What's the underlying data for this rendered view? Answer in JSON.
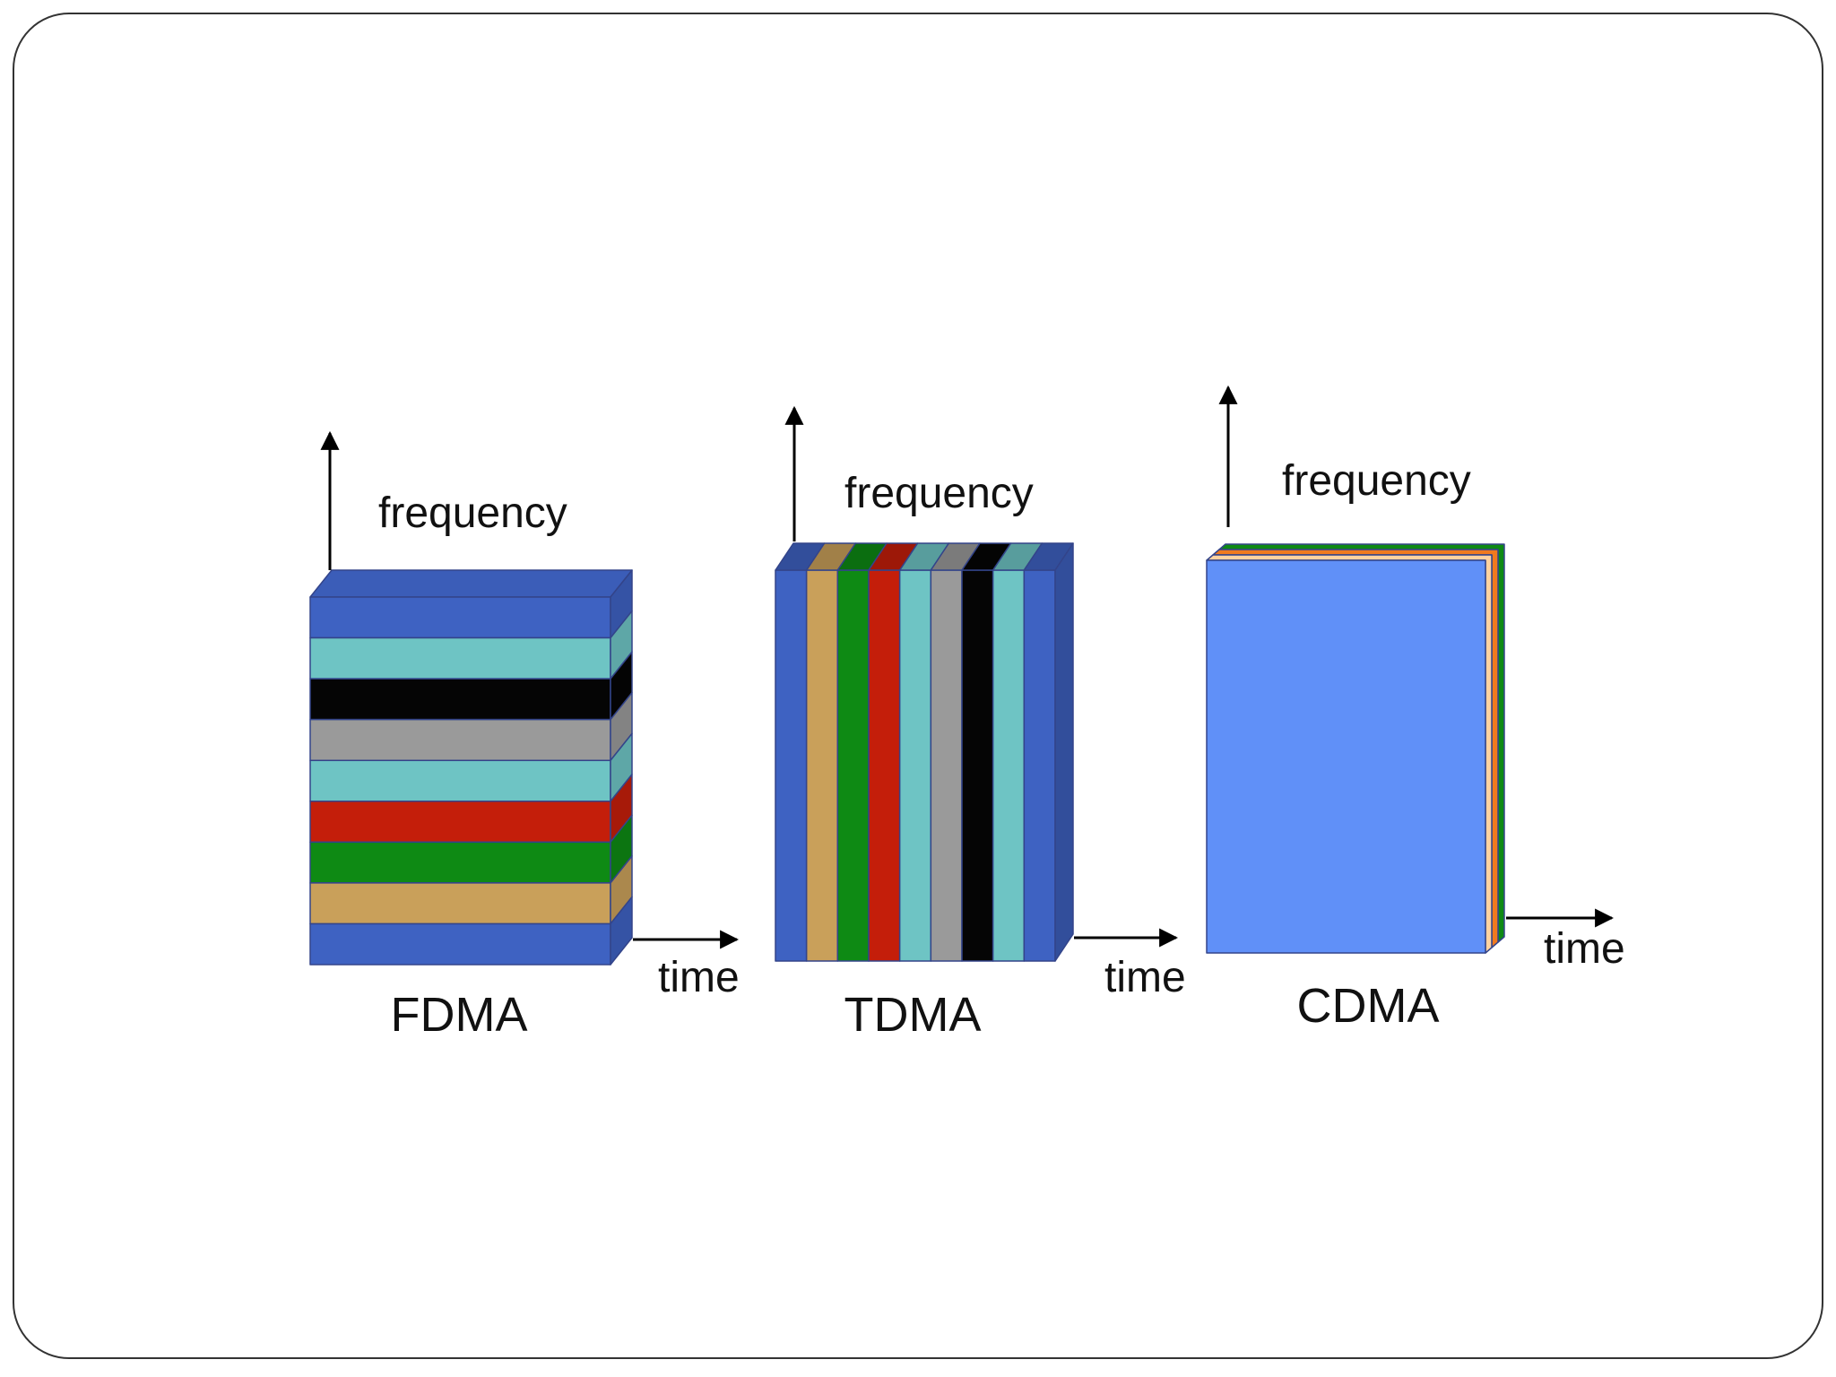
{
  "colors": {
    "blue": "#3e62c2",
    "teal": "#6ec4c4",
    "black": "#050505",
    "gray": "#9a9a9a",
    "red": "#c41e0a",
    "green": "#0e8a14",
    "tan": "#c9a05a",
    "cdma_front": "#6090f8",
    "orange": "#f07a1e",
    "peach": "#ffd2a0",
    "outline": "#33448a",
    "axis": "#000000",
    "frame": "#333333"
  },
  "icons": {
    "axis_arrow": "arrow-icon"
  },
  "diagrams": [
    {
      "scheme": "FDMA",
      "y_axis_label": "frequency",
      "x_axis_label": "time",
      "bands": [
        "blue",
        "teal",
        "black",
        "gray",
        "teal",
        "red",
        "green",
        "tan",
        "blue"
      ]
    },
    {
      "scheme": "TDMA",
      "y_axis_label": "frequency",
      "x_axis_label": "time",
      "slots": [
        "blue",
        "tan",
        "green",
        "red",
        "teal",
        "gray",
        "black",
        "teal",
        "blue"
      ]
    },
    {
      "scheme": "CDMA",
      "y_axis_label": "frequency",
      "x_axis_label": "time",
      "layers": [
        "cdma_front",
        "peach",
        "orange",
        "green"
      ]
    }
  ]
}
